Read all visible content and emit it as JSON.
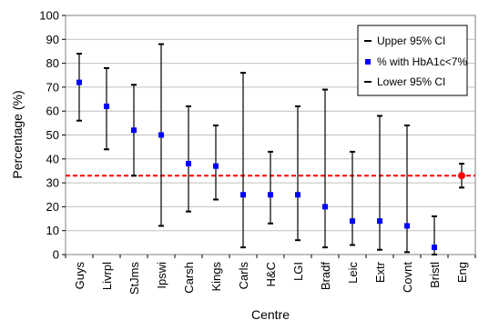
{
  "chart_data": {
    "type": "scatter",
    "title": "",
    "xlabel": "Centre",
    "ylabel": "Percentage (%)",
    "ylim": [
      0,
      100
    ],
    "ytick_step": 10,
    "ytick_format": "plain",
    "grid": {
      "horizontal": true,
      "vertical": false
    },
    "legend_position": "top-right",
    "categories": [
      "Guys",
      "Livrpl",
      "StJms",
      "Ipswi",
      "Carsh",
      "Kings",
      "Carls",
      "H&C",
      "LGI",
      "Bradf",
      "Leic",
      "Extr",
      "Covnt",
      "Bristl",
      "Eng"
    ],
    "series": [
      {
        "name": "Upper 95% CI",
        "values": [
          84,
          78,
          71,
          88,
          62,
          54,
          76,
          43,
          62,
          69,
          43,
          58,
          54,
          16,
          38
        ]
      },
      {
        "name": "% with HbA1c<7%",
        "values": [
          72,
          62,
          52,
          50,
          38,
          37,
          25,
          25,
          25,
          20,
          14,
          14,
          12,
          3,
          33
        ]
      },
      {
        "name": "Lower 95% CI",
        "values": [
          56,
          44,
          33,
          12,
          18,
          23,
          3,
          13,
          6,
          3,
          4,
          2,
          1,
          0,
          28
        ]
      }
    ],
    "reference_line": {
      "value": 33,
      "style": "dashed",
      "color": "#ff0000"
    },
    "colors": {
      "error_bar": "#000000",
      "point": "#0000ff",
      "highlight_point": "#ff0000",
      "plot_background": "#ffffff",
      "grid": "#c0c0c0"
    },
    "highlight_category": "Eng"
  }
}
